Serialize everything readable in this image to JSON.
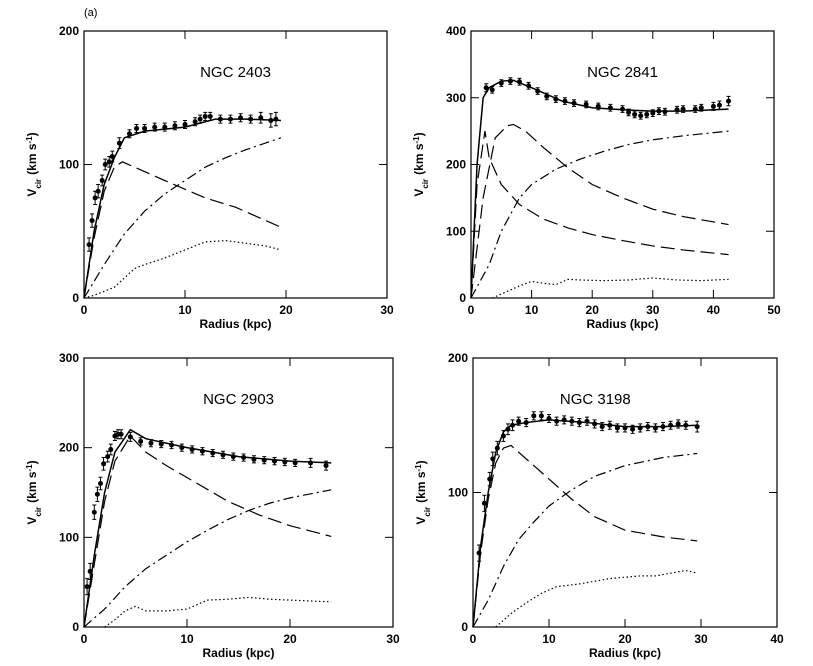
{
  "panel_label": "(a)",
  "chart_data": [
    {
      "type": "line",
      "title": "NGC 2403",
      "xlabel": "Radius (kpc)",
      "ylabel": [
        "V",
        "cir",
        "(km s",
        "-1",
        ")"
      ],
      "xlim": [
        0,
        30
      ],
      "ylim": [
        0,
        200
      ],
      "xticks": [
        0,
        10,
        20,
        30
      ],
      "yticks": [
        0,
        100,
        200
      ],
      "series": [
        {
          "style": "points",
          "color": "#000000",
          "x": [
            0.5,
            0.8,
            1.1,
            1.4,
            1.8,
            2.1,
            2.5,
            2.8,
            3.5,
            4.5,
            5.2,
            6,
            7,
            8,
            9,
            10,
            11,
            11.5,
            12,
            12.5,
            13.5,
            14.5,
            15.5,
            16.5,
            17.5,
            18.5,
            19
          ],
          "values": [
            40,
            58,
            75,
            80,
            88,
            100,
            102,
            106,
            116,
            123,
            127,
            127,
            128,
            128,
            129,
            130,
            132,
            134,
            136,
            136,
            134,
            134,
            135,
            134,
            135,
            133,
            134
          ],
          "errors": [
            5,
            5,
            5,
            5,
            4,
            4,
            4,
            4,
            4,
            3,
            3,
            3,
            3,
            3,
            3,
            3,
            3,
            3,
            3,
            3,
            3,
            3,
            3,
            3,
            4,
            5,
            5
          ]
        },
        {
          "style": "solid",
          "color": "#000000",
          "x": [
            0,
            1,
            2,
            3,
            4,
            6,
            10,
            13,
            16,
            19.5
          ],
          "values": [
            0,
            50,
            85,
            105,
            120,
            125,
            128,
            134,
            134,
            133
          ]
        },
        {
          "style": "dashed",
          "color": "#000000",
          "x": [
            0,
            1,
            2,
            3,
            3.8,
            5,
            8,
            12,
            15,
            19.5
          ],
          "values": [
            0,
            45,
            80,
            98,
            102,
            98,
            88,
            75,
            68,
            53
          ]
        },
        {
          "style": "dashdot",
          "color": "#000000",
          "x": [
            0,
            2,
            4,
            6,
            8,
            10,
            12,
            14,
            16,
            19.5
          ],
          "values": [
            0,
            25,
            48,
            65,
            78,
            88,
            98,
            105,
            111,
            120
          ]
        },
        {
          "style": "dotted",
          "color": "#000000",
          "x": [
            0,
            1,
            2,
            3,
            4,
            5,
            6,
            8,
            10,
            12,
            14,
            16,
            18,
            19.5
          ],
          "values": [
            0,
            2,
            5,
            8,
            15,
            22,
            25,
            30,
            36,
            42,
            43,
            41,
            39,
            36
          ]
        }
      ]
    },
    {
      "type": "line",
      "title": "NGC 2841",
      "xlabel": "Radius (kpc)",
      "ylabel": [
        "V",
        "cir",
        "(km s",
        "-1",
        ")"
      ],
      "xlim": [
        0,
        50
      ],
      "ylim": [
        0,
        400
      ],
      "xticks": [
        0,
        10,
        20,
        30,
        40,
        50
      ],
      "yticks": [
        0,
        100,
        200,
        300,
        400
      ],
      "series": [
        {
          "style": "points",
          "color": "#000000",
          "x": [
            2.5,
            3.5,
            5,
            6.5,
            8,
            9.5,
            11,
            12.5,
            14,
            15.5,
            17,
            19,
            21,
            23,
            25,
            26,
            27,
            28,
            29,
            30,
            31,
            32,
            34,
            35,
            37,
            38,
            40,
            41,
            42.5
          ],
          "values": [
            315,
            312,
            322,
            325,
            324,
            318,
            310,
            302,
            298,
            295,
            292,
            290,
            287,
            285,
            283,
            278,
            275,
            273,
            275,
            277,
            280,
            279,
            282,
            283,
            283,
            285,
            287,
            289,
            295
          ],
          "errors": [
            6,
            5,
            5,
            5,
            5,
            5,
            5,
            5,
            5,
            5,
            5,
            5,
            5,
            5,
            5,
            5,
            5,
            5,
            5,
            5,
            5,
            5,
            5,
            5,
            5,
            5,
            6,
            6,
            7
          ]
        },
        {
          "style": "solid",
          "color": "#000000",
          "x": [
            0,
            1,
            2,
            3,
            5,
            7,
            10,
            15,
            20,
            25,
            30,
            35,
            42.5
          ],
          "values": [
            0,
            200,
            300,
            315,
            325,
            326,
            315,
            295,
            285,
            282,
            280,
            280,
            283
          ]
        },
        {
          "style": "dashed",
          "color": "#000000",
          "x": [
            0,
            1,
            2.3,
            3,
            5,
            8,
            12,
            16,
            20,
            25,
            30,
            35,
            42.5
          ],
          "values": [
            0,
            170,
            250,
            210,
            170,
            140,
            118,
            105,
            95,
            86,
            78,
            72,
            65
          ]
        },
        {
          "style": "dashed",
          "color": "#000000",
          "x": [
            0,
            2,
            4,
            6,
            7,
            9,
            12,
            16,
            20,
            25,
            30,
            35,
            42.5
          ],
          "values": [
            0,
            150,
            240,
            258,
            260,
            250,
            225,
            195,
            170,
            150,
            133,
            122,
            110
          ]
        },
        {
          "style": "dashdot",
          "color": "#000000",
          "x": [
            0,
            3,
            5,
            8,
            10,
            14,
            18,
            22,
            26,
            30,
            35,
            42.5
          ],
          "values": [
            0,
            50,
            100,
            150,
            170,
            193,
            208,
            220,
            230,
            237,
            243,
            250
          ]
        },
        {
          "style": "dotted",
          "color": "#000000",
          "x": [
            3.5,
            6,
            8,
            10,
            12,
            14,
            16,
            18,
            22,
            26,
            30,
            34,
            38,
            42.5
          ],
          "values": [
            0,
            10,
            18,
            25,
            22,
            20,
            28,
            27,
            26,
            27,
            30,
            27,
            26,
            28
          ]
        }
      ]
    },
    {
      "type": "line",
      "title": "NGC 2903",
      "xlabel": "Radius (kpc)",
      "ylabel": [
        "V",
        "cir",
        "(km s",
        "-1",
        ")"
      ],
      "xlim": [
        0,
        30
      ],
      "ylim": [
        0,
        300
      ],
      "xticks": [
        0,
        10,
        20,
        30
      ],
      "yticks": [
        0,
        100,
        200,
        300
      ],
      "series": [
        {
          "style": "points",
          "color": "#000000",
          "x": [
            0.3,
            0.6,
            1,
            1.3,
            1.6,
            1.9,
            2.3,
            2.6,
            3,
            3.3,
            3.6,
            4.5,
            5.5,
            6.5,
            7.5,
            8.5,
            9.5,
            10.5,
            11.5,
            12.5,
            13.5,
            14.5,
            15.5,
            16.5,
            17.5,
            18.5,
            19.5,
            20.5,
            22,
            23.5
          ],
          "values": [
            45,
            62,
            128,
            148,
            160,
            182,
            190,
            198,
            213,
            215,
            215,
            212,
            207,
            205,
            204,
            203,
            200,
            198,
            196,
            194,
            192,
            190,
            189,
            187,
            186,
            185,
            184,
            183,
            183,
            180
          ],
          "errors": [
            9,
            9,
            8,
            8,
            7,
            7,
            6,
            6,
            5,
            5,
            5,
            5,
            4,
            4,
            4,
            4,
            4,
            4,
            4,
            4,
            4,
            4,
            4,
            4,
            4,
            4,
            4,
            4,
            5,
            5
          ]
        },
        {
          "style": "solid",
          "color": "#000000",
          "x": [
            0,
            1,
            2,
            3,
            4.5,
            6,
            10,
            15,
            20,
            24
          ],
          "values": [
            0,
            80,
            150,
            195,
            220,
            210,
            200,
            190,
            185,
            183
          ]
        },
        {
          "style": "dashed",
          "color": "#000000",
          "x": [
            0,
            1,
            2,
            3,
            4.5,
            6,
            8,
            11,
            14,
            17,
            20,
            24
          ],
          "values": [
            0,
            70,
            140,
            185,
            213,
            195,
            180,
            160,
            140,
            125,
            113,
            101
          ]
        },
        {
          "style": "dashdot",
          "color": "#000000",
          "x": [
            0,
            2,
            4,
            6,
            8,
            10,
            12,
            14,
            16,
            18,
            20,
            24
          ],
          "values": [
            0,
            20,
            45,
            65,
            80,
            95,
            108,
            120,
            130,
            138,
            144,
            153
          ]
        },
        {
          "style": "dotted",
          "color": "#000000",
          "x": [
            2,
            3,
            4,
            5,
            6,
            8,
            10,
            12,
            14,
            16,
            18,
            20,
            24
          ],
          "values": [
            0,
            8,
            18,
            23,
            18,
            18,
            20,
            30,
            31,
            33,
            31,
            30,
            28
          ]
        }
      ]
    },
    {
      "type": "line",
      "title": "NGC 3198",
      "xlabel": "Radius (kpc)",
      "ylabel": [
        "V",
        "cir",
        "(km s",
        "-1",
        ")"
      ],
      "xlim": [
        0,
        40
      ],
      "ylim": [
        0,
        200
      ],
      "xticks": [
        0,
        10,
        20,
        30,
        40
      ],
      "yticks": [
        0,
        100,
        200
      ],
      "series": [
        {
          "style": "points",
          "color": "#000000",
          "x": [
            0.8,
            1.5,
            2.2,
            2.6,
            3.2,
            4,
            4.6,
            5.2,
            6,
            7,
            8,
            9,
            10,
            11,
            12,
            13,
            14,
            15,
            16,
            17,
            18,
            19,
            20,
            21,
            22,
            23,
            24,
            25,
            26,
            27,
            28,
            29.5
          ],
          "values": [
            55,
            92,
            110,
            125,
            133,
            142,
            147,
            150,
            153,
            152,
            157,
            157,
            155,
            153,
            154,
            153,
            152,
            153,
            151,
            149,
            150,
            148,
            148,
            147,
            148,
            149,
            148,
            149,
            150,
            151,
            150,
            149
          ],
          "errors": [
            6,
            6,
            5,
            5,
            5,
            4,
            4,
            4,
            3,
            3,
            3,
            3,
            3,
            3,
            3,
            3,
            3,
            3,
            3,
            3,
            3,
            3,
            3,
            3,
            3,
            3,
            3,
            3,
            3,
            3,
            3,
            4
          ]
        },
        {
          "style": "solid",
          "color": "#000000",
          "x": [
            0,
            1,
            2,
            3,
            4,
            5,
            7,
            10,
            15,
            20,
            25,
            29.5
          ],
          "values": [
            0,
            60,
            100,
            130,
            145,
            150,
            152,
            154,
            152,
            149,
            149,
            150
          ]
        },
        {
          "style": "dashed",
          "color": "#000000",
          "x": [
            0,
            1,
            2,
            3,
            4,
            5,
            6,
            8,
            10,
            13,
            16,
            20,
            25,
            29.5
          ],
          "values": [
            0,
            55,
            95,
            122,
            133,
            135,
            130,
            120,
            110,
            95,
            82,
            72,
            67,
            64
          ]
        },
        {
          "style": "dashdot",
          "color": "#000000",
          "x": [
            0,
            2,
            4,
            6,
            8,
            10,
            13,
            16,
            20,
            25,
            29.5
          ],
          "values": [
            0,
            20,
            45,
            65,
            78,
            90,
            102,
            112,
            120,
            126,
            129
          ]
        },
        {
          "style": "dotted",
          "color": "#000000",
          "x": [
            3,
            5,
            7,
            9,
            11,
            14,
            16,
            18,
            20,
            22,
            24,
            26,
            28,
            29.5
          ],
          "values": [
            0,
            10,
            18,
            25,
            30,
            32,
            34,
            36,
            37,
            38,
            38,
            40,
            42,
            40
          ]
        }
      ]
    }
  ]
}
